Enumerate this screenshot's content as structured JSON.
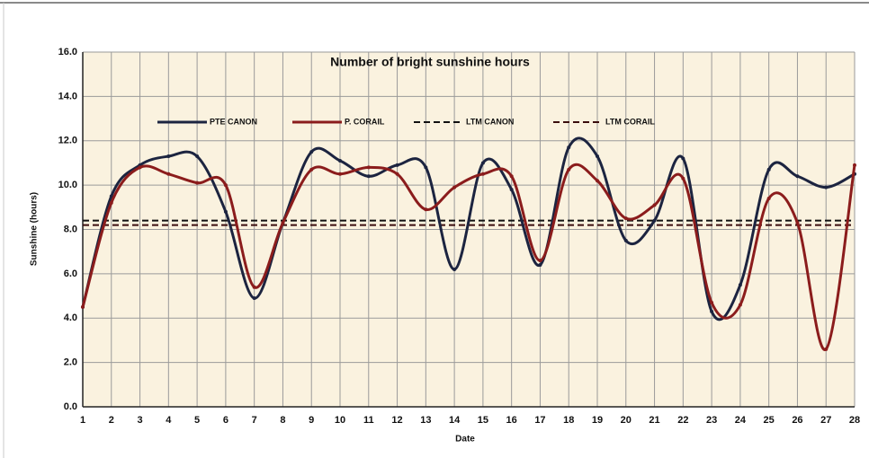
{
  "chart_data": {
    "type": "line",
    "title": "Number of bright sunshine hours",
    "x_label": "Date",
    "y_label": "Sunshine (hours)",
    "x": [
      1,
      2,
      3,
      4,
      5,
      6,
      7,
      8,
      9,
      10,
      11,
      12,
      13,
      14,
      15,
      16,
      17,
      18,
      19,
      20,
      21,
      22,
      23,
      24,
      25,
      26,
      27,
      28
    ],
    "xlim": [
      1,
      28
    ],
    "xticks": [
      1,
      2,
      3,
      4,
      5,
      6,
      7,
      8,
      9,
      10,
      11,
      12,
      13,
      14,
      15,
      16,
      17,
      18,
      19,
      20,
      21,
      22,
      23,
      24,
      25,
      26,
      27,
      28
    ],
    "ylim": [
      0,
      16
    ],
    "yticks": [
      {
        "value": 0,
        "label": "0.0"
      },
      {
        "value": 2,
        "label": "2.0"
      },
      {
        "value": 4,
        "label": "4.0"
      },
      {
        "value": 6,
        "label": "6.0"
      },
      {
        "value": 8,
        "label": "8.0"
      },
      {
        "value": 10,
        "label": "10.0"
      },
      {
        "value": 12,
        "label": "12.0"
      },
      {
        "value": 14,
        "label": "14.0"
      },
      {
        "value": 16,
        "label": "16.0"
      }
    ],
    "grid": true,
    "smooth": true,
    "legend": "top",
    "series": [
      {
        "name": "PTE CANON",
        "color": "#1c2440",
        "values": [
          4.5,
          9.5,
          10.9,
          11.3,
          11.3,
          8.8,
          4.9,
          8.3,
          11.5,
          11.1,
          10.4,
          10.9,
          10.8,
          6.2,
          11.0,
          9.8,
          6.4,
          11.7,
          11.3,
          7.5,
          8.4,
          11.2,
          4.3,
          5.5,
          10.7,
          10.4,
          9.9,
          10.5
        ]
      },
      {
        "name": "P. CORAIL",
        "color": "#8b1c1c",
        "values": [
          4.5,
          9.2,
          10.8,
          10.5,
          10.1,
          10.0,
          5.4,
          8.3,
          10.7,
          10.5,
          10.8,
          10.5,
          8.9,
          9.9,
          10.5,
          10.4,
          6.6,
          10.7,
          10.2,
          8.5,
          9.1,
          10.3,
          4.7,
          4.6,
          9.4,
          8.3,
          2.6,
          10.9
        ]
      }
    ],
    "reference_lines": [
      {
        "name": "LTM CANON",
        "color": "#111111",
        "value": 8.4
      },
      {
        "name": "LTM CORAIL",
        "color": "#3a0d0d",
        "value": 8.2
      }
    ]
  }
}
